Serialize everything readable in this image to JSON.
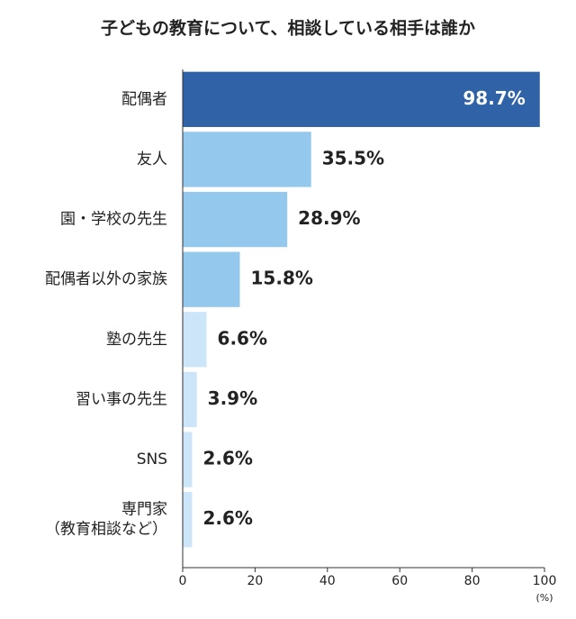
{
  "chart_data": {
    "type": "hbar",
    "title": "子どもの教育について、相談している相手は誰か",
    "categories": [
      "配偶者",
      "友人",
      "園・学校の先生",
      "配偶者以外の家族",
      "塾の先生",
      "習い事の先生",
      "SNS",
      "専門家\n（教育相談など）"
    ],
    "values": [
      98.7,
      35.5,
      28.9,
      15.8,
      6.6,
      3.9,
      2.6,
      2.6
    ],
    "value_labels": [
      "98.7%",
      "35.5%",
      "28.9%",
      "15.8%",
      "6.6%",
      "3.9%",
      "2.6%",
      "2.6%"
    ],
    "colors": [
      "#2f62a6",
      "#94c9ed",
      "#94c9ed",
      "#94c9ed",
      "#cde5f8",
      "#cde5f8",
      "#cde5f8",
      "#cde5f8"
    ],
    "xlim": [
      0,
      100
    ],
    "xticks": [
      0,
      20,
      40,
      60,
      80,
      100
    ],
    "x_unit": "(%)"
  }
}
